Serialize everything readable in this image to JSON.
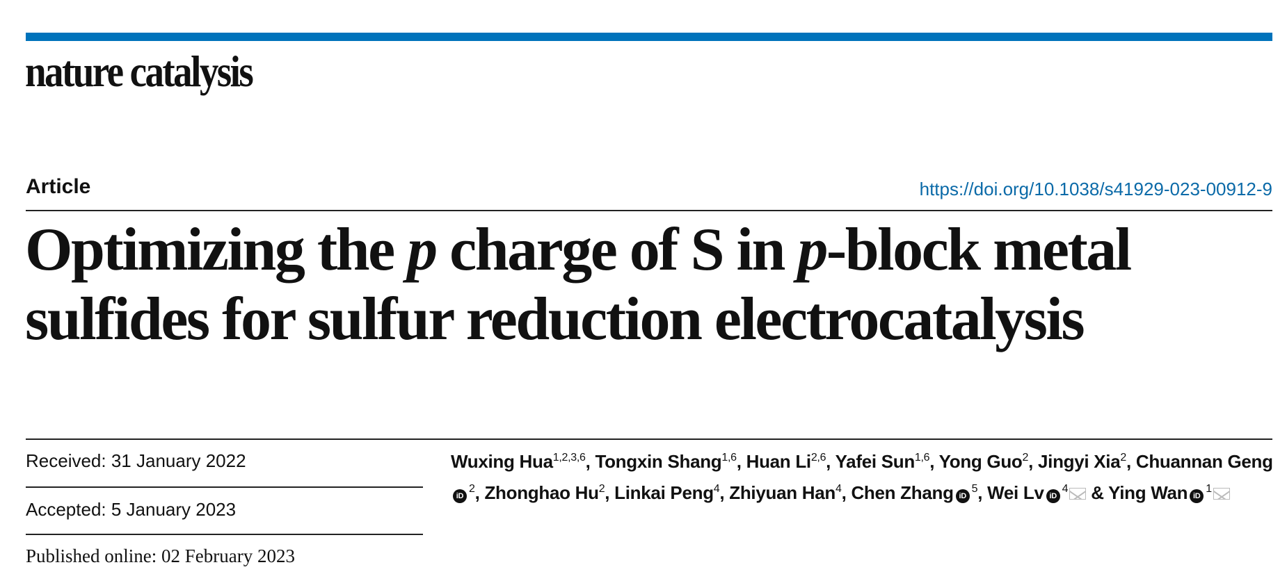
{
  "journal": {
    "name": "nature catalysis",
    "accent_color": "#0073bb"
  },
  "article_type": "Article",
  "doi": "https://doi.org/10.1038/s41929-023-00912-9",
  "title": {
    "part1": "Optimizing the ",
    "italic1": "p",
    "part2": " charge of S in ",
    "italic2": "p",
    "part3": "-block metal",
    "line2": "sulfides for sulfur reduction electrocatalysis"
  },
  "dates": {
    "received": "Received: 31 January 2022",
    "accepted": "Accepted: 5 January 2023",
    "published": "Published online: 02 February 2023"
  },
  "authors": [
    {
      "name": "Wuxing Hua",
      "aff": "1,2,3,6"
    },
    {
      "name": "Tongxin Shang",
      "aff": "1,6"
    },
    {
      "name": "Huan Li",
      "aff": "2,6"
    },
    {
      "name": "Yafei Sun",
      "aff": "1,6"
    },
    {
      "name": "Yong Guo",
      "aff": "2"
    },
    {
      "name": "Jingyi Xia",
      "aff": "2"
    },
    {
      "name": "Chuannan Geng",
      "aff": "2",
      "orcid": true
    },
    {
      "name": "Zhonghao Hu",
      "aff": "2"
    },
    {
      "name": "Linkai Peng",
      "aff": "4"
    },
    {
      "name": "Zhiyuan Han",
      "aff": "4"
    },
    {
      "name": "Chen Zhang",
      "aff": "5",
      "orcid": true
    },
    {
      "name": "Wei Lv",
      "aff": "4",
      "orcid": true,
      "mail": true
    },
    {
      "name": "Ying Wan",
      "aff": "1",
      "orcid": true,
      "mail": true
    }
  ],
  "icons": {
    "orcid": "orcid-icon",
    "mail": "envelope-icon"
  },
  "orcid_glyph": "iD",
  "separator": ", ",
  "last_separator": " & "
}
